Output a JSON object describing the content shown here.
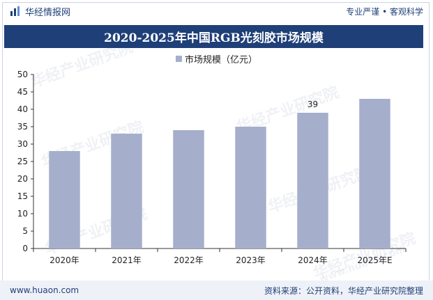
{
  "header": {
    "brand_name": "华经情报网",
    "slogan": "专业严谨 • 客观科学"
  },
  "title": "2020-2025年中国RGB光刻胶市场规模",
  "footer": {
    "url": "www.huaon.com",
    "source": "资料来源：公开资料，华经产业研究院整理"
  },
  "watermark": {
    "text": "华经产业研究院",
    "url": "www.huaon.com"
  },
  "colors": {
    "brand": "#1f3f78",
    "bar": "#a5afcc"
  },
  "chart_data": {
    "type": "bar",
    "categories": [
      "2020年",
      "2021年",
      "2022年",
      "2023年",
      "2024年",
      "2025年E"
    ],
    "series": [
      {
        "name": "市场规模（亿元）",
        "values": [
          28,
          33,
          34,
          35,
          39,
          43
        ]
      }
    ],
    "data_labels": [
      {
        "index": 4,
        "text": "39"
      }
    ],
    "ylim": [
      0,
      50
    ],
    "yticks": [
      0,
      5,
      10,
      15,
      20,
      25,
      30,
      35,
      40,
      45,
      50
    ],
    "legend_position": "top-center",
    "grid": false
  }
}
